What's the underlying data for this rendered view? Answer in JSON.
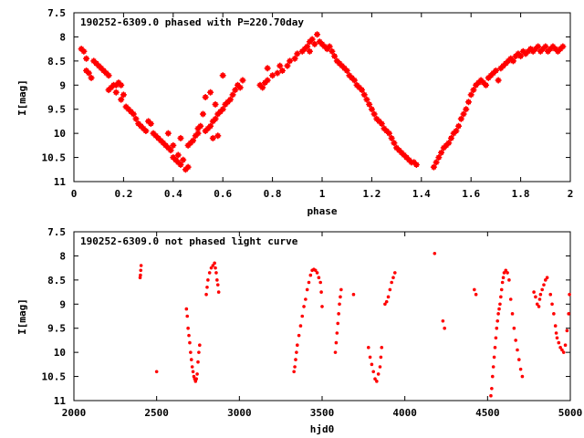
{
  "chart_data": [
    {
      "type": "scatter",
      "title": "190252-6309.0 phased with P=220.70day",
      "xlabel": "phase",
      "ylabel": "I[mag]",
      "xlim": [
        0,
        2
      ],
      "ylim": [
        7.5,
        11
      ],
      "y_inverted": true,
      "grid": false,
      "color": "#ff0000",
      "marker": "cross",
      "x_ticks": [
        "0",
        "0.2",
        "0.4",
        "0.6",
        "0.8",
        "1",
        "1.2",
        "1.4",
        "1.6",
        "1.8",
        "2"
      ],
      "y_ticks": [
        "7.5",
        "8",
        "8.5",
        "9",
        "9.5",
        "10",
        "10.5",
        "11"
      ],
      "x_tick_values": [
        0,
        0.2,
        0.4,
        0.6,
        0.8,
        1.0,
        1.2,
        1.4,
        1.6,
        1.8,
        2.0
      ],
      "y_tick_values": [
        7.5,
        8,
        8.5,
        9,
        9.5,
        10,
        10.5,
        11
      ],
      "points": [
        [
          0.03,
          8.25
        ],
        [
          0.04,
          8.3
        ],
        [
          0.05,
          8.45
        ],
        [
          0.05,
          8.7
        ],
        [
          0.06,
          8.75
        ],
        [
          0.07,
          8.85
        ],
        [
          0.08,
          8.5
        ],
        [
          0.09,
          8.55
        ],
        [
          0.1,
          8.6
        ],
        [
          0.11,
          8.65
        ],
        [
          0.12,
          8.7
        ],
        [
          0.13,
          8.75
        ],
        [
          0.14,
          8.8
        ],
        [
          0.14,
          9.1
        ],
        [
          0.15,
          9.05
        ],
        [
          0.16,
          9.0
        ],
        [
          0.17,
          9.0
        ],
        [
          0.17,
          9.15
        ],
        [
          0.18,
          8.95
        ],
        [
          0.19,
          9.0
        ],
        [
          0.19,
          9.3
        ],
        [
          0.2,
          9.2
        ],
        [
          0.21,
          9.45
        ],
        [
          0.22,
          9.5
        ],
        [
          0.23,
          9.55
        ],
        [
          0.24,
          9.6
        ],
        [
          0.25,
          9.7
        ],
        [
          0.26,
          9.8
        ],
        [
          0.27,
          9.85
        ],
        [
          0.28,
          9.9
        ],
        [
          0.29,
          9.95
        ],
        [
          0.3,
          9.75
        ],
        [
          0.31,
          9.8
        ],
        [
          0.32,
          10.0
        ],
        [
          0.33,
          10.05
        ],
        [
          0.34,
          10.1
        ],
        [
          0.35,
          10.15
        ],
        [
          0.36,
          10.2
        ],
        [
          0.37,
          10.25
        ],
        [
          0.38,
          10.0
        ],
        [
          0.38,
          10.3
        ],
        [
          0.39,
          10.35
        ],
        [
          0.4,
          10.25
        ],
        [
          0.4,
          10.5
        ],
        [
          0.41,
          10.55
        ],
        [
          0.42,
          10.45
        ],
        [
          0.42,
          10.6
        ],
        [
          0.43,
          10.1
        ],
        [
          0.43,
          10.65
        ],
        [
          0.44,
          10.55
        ],
        [
          0.45,
          10.75
        ],
        [
          0.46,
          10.7
        ],
        [
          0.46,
          10.25
        ],
        [
          0.47,
          10.2
        ],
        [
          0.48,
          10.15
        ],
        [
          0.49,
          10.05
        ],
        [
          0.5,
          10.0
        ],
        [
          0.5,
          9.9
        ],
        [
          0.51,
          9.85
        ],
        [
          0.52,
          9.6
        ],
        [
          0.53,
          9.95
        ],
        [
          0.54,
          9.9
        ],
        [
          0.55,
          9.85
        ],
        [
          0.56,
          9.75
        ],
        [
          0.56,
          10.1
        ],
        [
          0.57,
          9.7
        ],
        [
          0.58,
          9.6
        ],
        [
          0.58,
          10.05
        ],
        [
          0.59,
          9.55
        ],
        [
          0.6,
          9.5
        ],
        [
          0.6,
          8.8
        ],
        [
          0.61,
          9.4
        ],
        [
          0.62,
          9.35
        ],
        [
          0.63,
          9.3
        ],
        [
          0.64,
          9.2
        ],
        [
          0.65,
          9.1
        ],
        [
          0.66,
          9.0
        ],
        [
          0.67,
          9.05
        ],
        [
          0.68,
          8.9
        ],
        [
          0.53,
          9.25
        ],
        [
          0.55,
          9.15
        ],
        [
          0.57,
          9.4
        ],
        [
          0.75,
          9.0
        ],
        [
          0.76,
          9.05
        ],
        [
          0.77,
          8.95
        ],
        [
          0.78,
          8.9
        ],
        [
          0.78,
          8.65
        ],
        [
          0.8,
          8.8
        ],
        [
          0.82,
          8.75
        ],
        [
          0.83,
          8.6
        ],
        [
          0.84,
          8.7
        ],
        [
          0.86,
          8.6
        ],
        [
          0.87,
          8.5
        ],
        [
          0.89,
          8.45
        ],
        [
          0.9,
          8.35
        ],
        [
          0.92,
          8.3
        ],
        [
          0.93,
          8.25
        ],
        [
          0.94,
          8.2
        ],
        [
          0.95,
          8.1
        ],
        [
          0.95,
          8.3
        ],
        [
          0.96,
          8.05
        ],
        [
          0.97,
          8.15
        ],
        [
          0.98,
          7.95
        ],
        [
          0.99,
          8.1
        ],
        [
          1.0,
          8.15
        ],
        [
          1.01,
          8.2
        ],
        [
          1.02,
          8.25
        ],
        [
          1.03,
          8.2
        ],
        [
          1.04,
          8.3
        ],
        [
          1.05,
          8.4
        ],
        [
          1.06,
          8.5
        ],
        [
          1.07,
          8.55
        ],
        [
          1.08,
          8.6
        ],
        [
          1.09,
          8.65
        ],
        [
          1.1,
          8.7
        ],
        [
          1.11,
          8.8
        ],
        [
          1.12,
          8.85
        ],
        [
          1.13,
          8.9
        ],
        [
          1.14,
          9.0
        ],
        [
          1.15,
          9.05
        ],
        [
          1.16,
          9.1
        ],
        [
          1.17,
          9.2
        ],
        [
          1.18,
          9.3
        ],
        [
          1.19,
          9.4
        ],
        [
          1.2,
          9.5
        ],
        [
          1.21,
          9.6
        ],
        [
          1.22,
          9.7
        ],
        [
          1.23,
          9.75
        ],
        [
          1.24,
          9.8
        ],
        [
          1.25,
          9.9
        ],
        [
          1.26,
          9.95
        ],
        [
          1.27,
          10.0
        ],
        [
          1.28,
          10.1
        ],
        [
          1.29,
          10.2
        ],
        [
          1.3,
          10.3
        ],
        [
          1.31,
          10.35
        ],
        [
          1.32,
          10.4
        ],
        [
          1.33,
          10.45
        ],
        [
          1.34,
          10.5
        ],
        [
          1.35,
          10.55
        ],
        [
          1.36,
          10.6
        ],
        [
          1.37,
          10.6
        ],
        [
          1.38,
          10.65
        ],
        [
          1.45,
          10.7
        ],
        [
          1.46,
          10.6
        ],
        [
          1.47,
          10.5
        ],
        [
          1.48,
          10.4
        ],
        [
          1.49,
          10.3
        ],
        [
          1.5,
          10.25
        ],
        [
          1.51,
          10.2
        ],
        [
          1.52,
          10.1
        ],
        [
          1.53,
          10.0
        ],
        [
          1.54,
          9.95
        ],
        [
          1.55,
          9.85
        ],
        [
          1.56,
          9.7
        ],
        [
          1.57,
          9.6
        ],
        [
          1.58,
          9.5
        ],
        [
          1.59,
          9.35
        ],
        [
          1.6,
          9.2
        ],
        [
          1.61,
          9.1
        ],
        [
          1.62,
          9.0
        ],
        [
          1.63,
          8.95
        ],
        [
          1.64,
          8.9
        ],
        [
          1.65,
          8.95
        ],
        [
          1.66,
          9.0
        ],
        [
          1.67,
          8.85
        ],
        [
          1.68,
          8.8
        ],
        [
          1.69,
          8.75
        ],
        [
          1.7,
          8.7
        ],
        [
          1.71,
          8.9
        ],
        [
          1.72,
          8.65
        ],
        [
          1.73,
          8.6
        ],
        [
          1.74,
          8.55
        ],
        [
          1.75,
          8.5
        ],
        [
          1.76,
          8.45
        ],
        [
          1.77,
          8.5
        ],
        [
          1.78,
          8.4
        ],
        [
          1.79,
          8.35
        ],
        [
          1.8,
          8.4
        ],
        [
          1.81,
          8.3
        ],
        [
          1.82,
          8.35
        ],
        [
          1.83,
          8.3
        ],
        [
          1.84,
          8.25
        ],
        [
          1.85,
          8.3
        ],
        [
          1.86,
          8.25
        ],
        [
          1.87,
          8.2
        ],
        [
          1.88,
          8.3
        ],
        [
          1.89,
          8.25
        ],
        [
          1.9,
          8.2
        ],
        [
          1.91,
          8.3
        ],
        [
          1.92,
          8.25
        ],
        [
          1.93,
          8.2
        ],
        [
          1.94,
          8.25
        ],
        [
          1.95,
          8.3
        ],
        [
          1.96,
          8.25
        ],
        [
          1.97,
          8.2
        ]
      ]
    },
    {
      "type": "scatter",
      "title": "190252-6309.0 not phased light curve",
      "xlabel": "hjd0",
      "ylabel": "I[mag]",
      "xlim": [
        2000,
        5000
      ],
      "ylim": [
        7.5,
        11
      ],
      "y_inverted": true,
      "grid": false,
      "color": "#ff0000",
      "marker": "dot",
      "x_ticks": [
        "2000",
        "2500",
        "3000",
        "3500",
        "4000",
        "4500",
        "5000"
      ],
      "y_ticks": [
        "7.5",
        "8",
        "8.5",
        "9",
        "9.5",
        "10",
        "10.5",
        "11"
      ],
      "x_tick_values": [
        2000,
        2500,
        3000,
        3500,
        4000,
        4500,
        5000
      ],
      "y_tick_values": [
        7.5,
        8,
        8.5,
        9,
        9.5,
        10,
        10.5,
        11
      ],
      "points": [
        [
          2400,
          8.45
        ],
        [
          2402,
          8.4
        ],
        [
          2404,
          8.3
        ],
        [
          2406,
          8.2
        ],
        [
          2500,
          10.4
        ],
        [
          2680,
          9.1
        ],
        [
          2685,
          9.25
        ],
        [
          2690,
          9.5
        ],
        [
          2695,
          9.65
        ],
        [
          2700,
          9.8
        ],
        [
          2705,
          10.0
        ],
        [
          2710,
          10.15
        ],
        [
          2715,
          10.3
        ],
        [
          2720,
          10.4
        ],
        [
          2725,
          10.5
        ],
        [
          2730,
          10.55
        ],
        [
          2735,
          10.6
        ],
        [
          2740,
          10.55
        ],
        [
          2745,
          10.45
        ],
        [
          2750,
          10.2
        ],
        [
          2755,
          10.0
        ],
        [
          2760,
          9.85
        ],
        [
          2800,
          8.8
        ],
        [
          2805,
          8.65
        ],
        [
          2810,
          8.5
        ],
        [
          2820,
          8.35
        ],
        [
          2830,
          8.25
        ],
        [
          2840,
          8.2
        ],
        [
          2850,
          8.15
        ],
        [
          2855,
          8.25
        ],
        [
          2860,
          8.35
        ],
        [
          2865,
          8.5
        ],
        [
          2870,
          8.6
        ],
        [
          2875,
          8.75
        ],
        [
          3330,
          10.4
        ],
        [
          3335,
          10.3
        ],
        [
          3340,
          10.15
        ],
        [
          3345,
          10.0
        ],
        [
          3350,
          9.85
        ],
        [
          3360,
          9.65
        ],
        [
          3370,
          9.45
        ],
        [
          3380,
          9.25
        ],
        [
          3390,
          9.05
        ],
        [
          3400,
          8.9
        ],
        [
          3410,
          8.7
        ],
        [
          3420,
          8.55
        ],
        [
          3430,
          8.4
        ],
        [
          3440,
          8.3
        ],
        [
          3450,
          8.28
        ],
        [
          3460,
          8.3
        ],
        [
          3470,
          8.35
        ],
        [
          3480,
          8.45
        ],
        [
          3490,
          8.55
        ],
        [
          3495,
          8.75
        ],
        [
          3500,
          9.05
        ],
        [
          3580,
          10.0
        ],
        [
          3585,
          9.8
        ],
        [
          3590,
          9.6
        ],
        [
          3595,
          9.4
        ],
        [
          3600,
          9.2
        ],
        [
          3605,
          9.0
        ],
        [
          3610,
          8.85
        ],
        [
          3615,
          8.7
        ],
        [
          3690,
          8.8
        ],
        [
          3780,
          9.9
        ],
        [
          3790,
          10.1
        ],
        [
          3800,
          10.25
        ],
        [
          3810,
          10.4
        ],
        [
          3820,
          10.55
        ],
        [
          3830,
          10.6
        ],
        [
          3840,
          10.45
        ],
        [
          3850,
          10.3
        ],
        [
          3855,
          10.1
        ],
        [
          3860,
          9.9
        ],
        [
          3880,
          9.0
        ],
        [
          3890,
          8.95
        ],
        [
          3900,
          8.85
        ],
        [
          3910,
          8.7
        ],
        [
          3920,
          8.55
        ],
        [
          3930,
          8.45
        ],
        [
          3940,
          8.35
        ],
        [
          4180,
          7.95
        ],
        [
          4230,
          9.35
        ],
        [
          4240,
          9.5
        ],
        [
          4420,
          8.7
        ],
        [
          4430,
          8.8
        ],
        [
          4520,
          10.9
        ],
        [
          4525,
          10.75
        ],
        [
          4530,
          10.5
        ],
        [
          4535,
          10.3
        ],
        [
          4540,
          10.1
        ],
        [
          4545,
          9.9
        ],
        [
          4550,
          9.7
        ],
        [
          4555,
          9.5
        ],
        [
          4560,
          9.35
        ],
        [
          4565,
          9.2
        ],
        [
          4570,
          9.1
        ],
        [
          4575,
          9.0
        ],
        [
          4580,
          8.85
        ],
        [
          4585,
          8.7
        ],
        [
          4590,
          8.55
        ],
        [
          4595,
          8.45
        ],
        [
          4600,
          8.35
        ],
        [
          4610,
          8.3
        ],
        [
          4620,
          8.35
        ],
        [
          4630,
          8.5
        ],
        [
          4640,
          8.9
        ],
        [
          4650,
          9.2
        ],
        [
          4660,
          9.5
        ],
        [
          4670,
          9.75
        ],
        [
          4680,
          9.95
        ],
        [
          4690,
          10.15
        ],
        [
          4700,
          10.35
        ],
        [
          4710,
          10.5
        ],
        [
          4780,
          8.75
        ],
        [
          4790,
          8.85
        ],
        [
          4800,
          9.0
        ],
        [
          4810,
          9.05
        ],
        [
          4815,
          8.9
        ],
        [
          4820,
          8.8
        ],
        [
          4830,
          8.7
        ],
        [
          4840,
          8.6
        ],
        [
          4850,
          8.5
        ],
        [
          4860,
          8.45
        ],
        [
          4880,
          8.8
        ],
        [
          4890,
          9.0
        ],
        [
          4900,
          9.2
        ],
        [
          4910,
          9.45
        ],
        [
          4915,
          9.6
        ],
        [
          4920,
          9.7
        ],
        [
          4930,
          9.8
        ],
        [
          4940,
          9.9
        ],
        [
          4950,
          9.95
        ],
        [
          4960,
          10.0
        ],
        [
          4970,
          9.85
        ],
        [
          4980,
          9.55
        ],
        [
          4990,
          9.2
        ],
        [
          4995,
          8.8
        ]
      ]
    }
  ]
}
